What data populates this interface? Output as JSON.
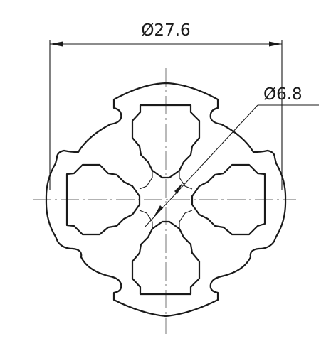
{
  "dimensions": {
    "outer_diameter_label": "Ø27.6",
    "center_bore_label": "Ø6.8"
  }
}
